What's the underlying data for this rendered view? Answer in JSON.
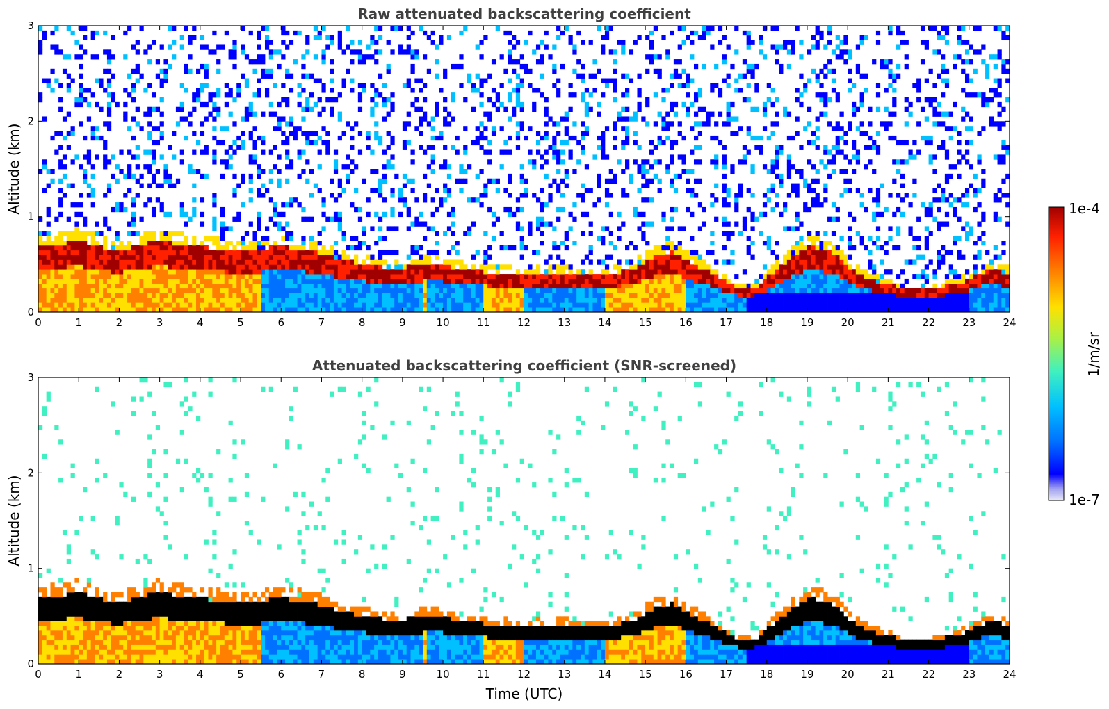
{
  "chart_data": [
    {
      "type": "heatmap",
      "title": "Raw attenuated backscattering coefficient",
      "xlabel": "",
      "ylabel": "Altitude (km)",
      "xlim": [
        0,
        24
      ],
      "ylim": [
        0,
        3
      ],
      "xticks": [
        "0",
        "1",
        "2",
        "3",
        "4",
        "5",
        "6",
        "7",
        "8",
        "9",
        "10",
        "11",
        "12",
        "13",
        "14",
        "15",
        "16",
        "17",
        "18",
        "19",
        "20",
        "21",
        "22",
        "23",
        "24"
      ],
      "yticks": [
        "0",
        "1",
        "2",
        "3"
      ],
      "screened": false,
      "layer_top_km": [
        0.6,
        0.62,
        0.65,
        0.6,
        0.55,
        0.6,
        0.65,
        0.62,
        0.6,
        0.58,
        0.55,
        0.56,
        0.6,
        0.58,
        0.55,
        0.5,
        0.45,
        0.42,
        0.4,
        0.42,
        0.45,
        0.4,
        0.38,
        0.36,
        0.35,
        0.35,
        0.36,
        0.35,
        0.34,
        0.35,
        0.4,
        0.5,
        0.55,
        0.45,
        0.35,
        0.25,
        0.2,
        0.35,
        0.5,
        0.6,
        0.55,
        0.4,
        0.3,
        0.25,
        0.2,
        0.2,
        0.25,
        0.3,
        0.4,
        0.35
      ]
    },
    {
      "type": "heatmap",
      "title": "Attenuated backscattering coefficient (SNR-screened)",
      "xlabel": "Time (UTC)",
      "ylabel": "Altitude (km)",
      "xlim": [
        0,
        24
      ],
      "ylim": [
        0,
        3
      ],
      "xticks": [
        "0",
        "1",
        "2",
        "3",
        "4",
        "5",
        "6",
        "7",
        "8",
        "9",
        "10",
        "11",
        "12",
        "13",
        "14",
        "15",
        "16",
        "17",
        "18",
        "19",
        "20",
        "21",
        "22",
        "23",
        "24"
      ],
      "yticks": [
        "0",
        "1",
        "2",
        "3"
      ],
      "screened": true
    }
  ],
  "colorbar": {
    "max_label": "1e-4",
    "min_label": "1e-7",
    "unit_label": "1/m/sr",
    "colors": [
      "#e8e8f8",
      "#a0a0f0",
      "#0000ff",
      "#0070ff",
      "#00c0ff",
      "#40f0c0",
      "#b0f040",
      "#ffe000",
      "#ff8000",
      "#ff2000",
      "#a00000"
    ]
  }
}
